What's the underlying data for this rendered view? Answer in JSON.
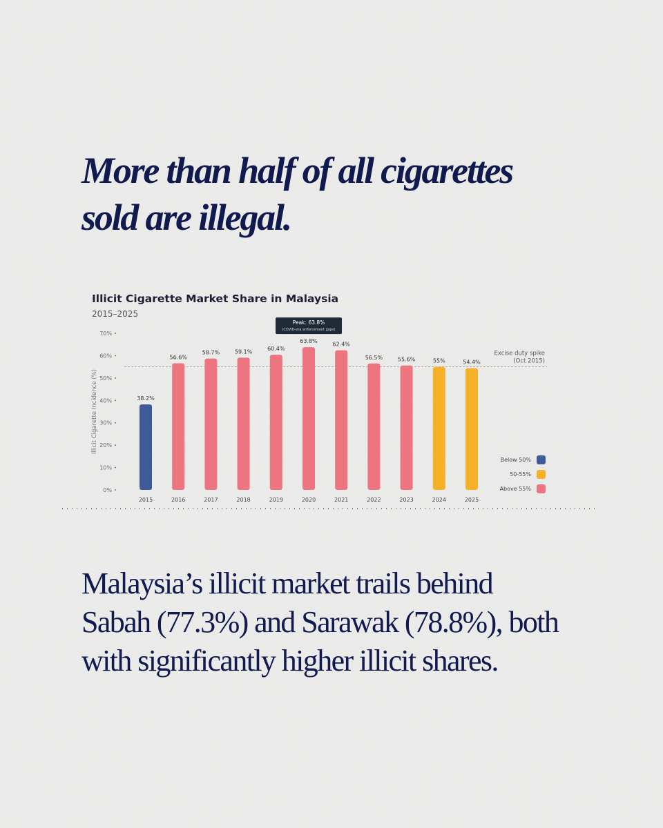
{
  "headline": [
    "More than half of all cigarettes",
    "sold are illegal."
  ],
  "body": [
    "Malaysia’s illicit market trails behind",
    "Sabah (77.3%) and Sarawak (78.8%), both",
    "with significantly higher illicit shares."
  ],
  "chart_data": {
    "type": "bar",
    "title": "Illicit Cigarette Market Share in Malaysia",
    "subtitle": "2015–2025",
    "y_label": "Illicit Cigarette Incidence (%)",
    "categories": [
      "2015",
      "2016",
      "2017",
      "2018",
      "2019",
      "2020",
      "2021",
      "2022",
      "2023",
      "2024",
      "2025"
    ],
    "values": [
      38.2,
      56.6,
      58.7,
      59.1,
      60.4,
      63.8,
      62.4,
      56.5,
      55.6,
      55,
      54.4
    ],
    "value_labels": [
      "38.2%",
      "56.6%",
      "58.7%",
      "59.1%",
      "60.4%",
      "63.8%",
      "62.4%",
      "56.5%",
      "55.6%",
      "55%",
      "54.4%"
    ],
    "colors": [
      "#3f5a99",
      "#ec7580",
      "#ec7580",
      "#ec7580",
      "#ec7580",
      "#ec7580",
      "#ec7580",
      "#ec7580",
      "#ec7580",
      "#f5b12a",
      "#f5b12a"
    ],
    "ylim": [
      0,
      70
    ],
    "yticks": [
      {
        "value": 0,
        "label": "0%"
      },
      {
        "value": 10,
        "label": "10%"
      },
      {
        "value": 20,
        "label": "20%"
      },
      {
        "value": 30,
        "label": "30%"
      },
      {
        "value": 40,
        "label": "40%"
      },
      {
        "value": 50,
        "label": "50%"
      },
      {
        "value": 60,
        "label": "60%"
      },
      {
        "value": 70,
        "label": "70%"
      }
    ],
    "reference_line": {
      "value": 55,
      "label": [
        "Excise duty spike",
        "(Oct 2015)"
      ]
    },
    "peak_annotation": {
      "title": "Peak: 63.8%",
      "note": "(COVID-era enforcement gaps)"
    },
    "legend": [
      {
        "name": "Below 50%",
        "color": "#3f5a99"
      },
      {
        "name": "50-55%",
        "color": "#f5b12a"
      },
      {
        "name": "Above 55%",
        "color": "#ec7580"
      }
    ]
  }
}
